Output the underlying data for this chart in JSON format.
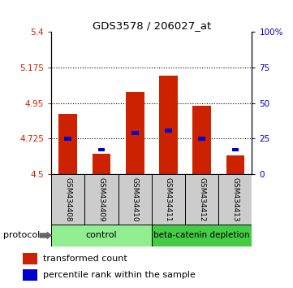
{
  "title": "GDS3578 / 206027_at",
  "samples": [
    "GSM434408",
    "GSM434409",
    "GSM434410",
    "GSM434411",
    "GSM434412",
    "GSM434413"
  ],
  "red_values": [
    4.88,
    4.63,
    5.02,
    5.12,
    4.93,
    4.62
  ],
  "blue_values": [
    4.725,
    4.655,
    4.76,
    4.775,
    4.725,
    4.655
  ],
  "y_min": 4.5,
  "y_max": 5.4,
  "y_ticks_left": [
    4.5,
    4.725,
    4.95,
    5.175,
    5.4
  ],
  "y_ticks_right": [
    0,
    25,
    50,
    75,
    100
  ],
  "y_ticks_right_labels": [
    "0",
    "25",
    "50",
    "75",
    "100%"
  ],
  "dotted_lines": [
    4.725,
    4.95,
    5.175
  ],
  "control_label": "control",
  "treatment_label": "beta-catenin depletion",
  "protocol_label": "protocol",
  "legend_red": "transformed count",
  "legend_blue": "percentile rank within the sample",
  "bar_width": 0.55,
  "control_bg": "#90EE90",
  "treatment_bg": "#44CC44",
  "sample_bg": "#CCCCCC",
  "red_color": "#CC2200",
  "blue_color": "#0000CC",
  "left_tick_color": "#CC2200",
  "right_tick_color": "#0000BB"
}
